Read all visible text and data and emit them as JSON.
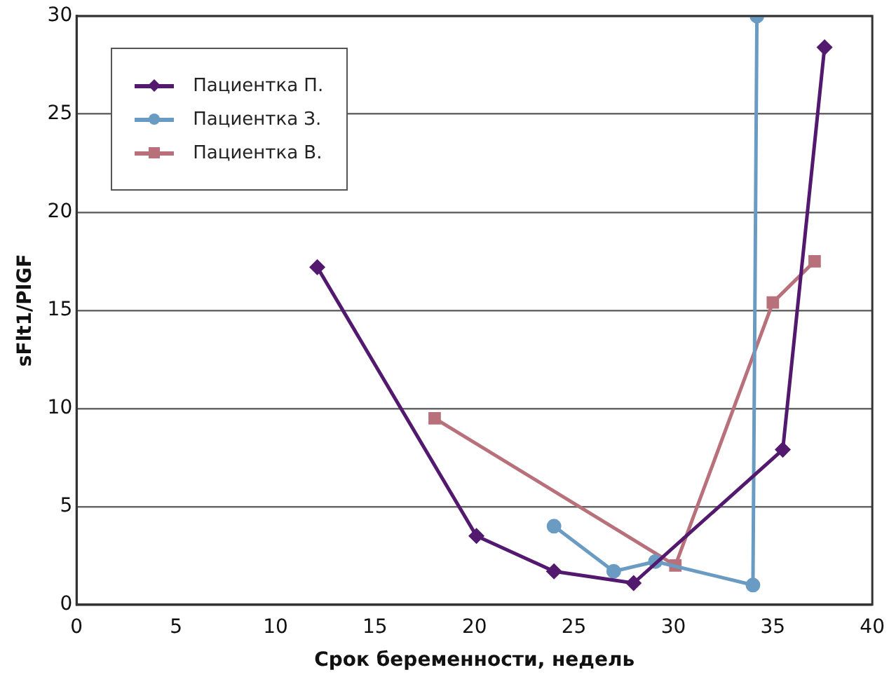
{
  "chart_data": {
    "type": "line",
    "xlabel": "Срок беременности, недель",
    "ylabel": "sFlt1/PlGF",
    "xlim": [
      0,
      40
    ],
    "xticks": [
      0,
      5,
      10,
      15,
      20,
      25,
      30,
      35,
      40
    ],
    "ylim": [
      0,
      30
    ],
    "yticks": [
      0,
      5,
      10,
      15,
      20,
      25,
      30
    ],
    "grid": "y",
    "legend": "top left",
    "series": [
      {
        "name": "Пациентка П.",
        "color": "#52196e",
        "marker": "diamond",
        "x": [
          12.1,
          20.1,
          24.0,
          28.0,
          35.5,
          37.6
        ],
        "values": [
          17.2,
          3.5,
          1.7,
          1.1,
          7.9,
          28.4
        ]
      },
      {
        "name": "Пациентка З.",
        "color": "#6a9bc3",
        "marker": "circle",
        "x": [
          24.0,
          27.0,
          29.1,
          34.0,
          34.2
        ],
        "values": [
          4.0,
          1.7,
          2.2,
          1.0,
          30
        ]
      },
      {
        "name": "Пациентка В.",
        "color": "#b8707a",
        "marker": "square",
        "x": [
          18.0,
          30.1,
          35.0,
          37.1
        ],
        "values": [
          9.5,
          2.0,
          15.4,
          17.5
        ]
      }
    ]
  }
}
